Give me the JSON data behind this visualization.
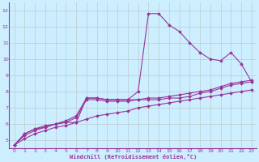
{
  "xlabel": "Windchill (Refroidissement éolien,°C)",
  "bg_color": "#cceeff",
  "line_color": "#993399",
  "grid_color": "#bbcccc",
  "xlim": [
    -0.5,
    23.5
  ],
  "ylim": [
    4.5,
    13.5
  ],
  "xticks": [
    0,
    1,
    2,
    3,
    4,
    5,
    6,
    7,
    8,
    9,
    10,
    11,
    12,
    13,
    14,
    15,
    16,
    17,
    18,
    19,
    20,
    21,
    22,
    23
  ],
  "yticks": [
    5,
    6,
    7,
    8,
    9,
    10,
    11,
    12,
    13
  ],
  "series": [
    {
      "x": [
        0,
        1,
        2,
        3,
        4,
        5,
        6,
        7,
        8,
        9,
        10,
        11,
        12,
        13,
        14,
        15,
        16,
        17,
        18,
        19,
        20,
        21,
        22,
        23
      ],
      "y": [
        4.7,
        5.4,
        5.7,
        5.8,
        6.0,
        6.1,
        6.1,
        7.6,
        7.6,
        7.5,
        7.5,
        7.5,
        8.0,
        12.8,
        12.8,
        12.1,
        11.7,
        11.0,
        10.4,
        10.0,
        9.9,
        10.4,
        9.7,
        8.6
      ]
    },
    {
      "x": [
        0,
        1,
        2,
        3,
        4,
        5,
        6,
        7,
        8,
        9,
        10,
        11,
        12,
        13,
        14,
        15,
        16,
        17,
        18,
        19,
        20,
        21,
        22,
        23
      ],
      "y": [
        4.7,
        5.4,
        5.7,
        5.9,
        6.0,
        6.2,
        6.5,
        7.6,
        7.6,
        7.5,
        7.5,
        7.5,
        7.5,
        7.6,
        7.6,
        7.7,
        7.8,
        7.9,
        8.0,
        8.1,
        8.3,
        8.5,
        8.6,
        8.7
      ]
    },
    {
      "x": [
        0,
        1,
        2,
        3,
        4,
        5,
        6,
        7,
        8,
        9,
        10,
        11,
        12,
        13,
        14,
        15,
        16,
        17,
        18,
        19,
        20,
        21,
        22,
        23
      ],
      "y": [
        4.7,
        5.1,
        5.4,
        5.6,
        5.8,
        5.9,
        6.1,
        6.3,
        6.5,
        6.6,
        6.7,
        6.8,
        7.0,
        7.1,
        7.2,
        7.3,
        7.4,
        7.5,
        7.6,
        7.7,
        7.8,
        7.9,
        8.0,
        8.1
      ]
    },
    {
      "x": [
        0,
        1,
        2,
        3,
        4,
        5,
        6,
        7,
        8,
        9,
        10,
        11,
        12,
        13,
        14,
        15,
        16,
        17,
        18,
        19,
        20,
        21,
        22,
        23
      ],
      "y": [
        4.7,
        5.3,
        5.6,
        5.8,
        6.0,
        6.1,
        6.4,
        7.5,
        7.5,
        7.4,
        7.4,
        7.4,
        7.5,
        7.5,
        7.5,
        7.6,
        7.6,
        7.7,
        7.9,
        8.0,
        8.2,
        8.4,
        8.5,
        8.6
      ]
    }
  ]
}
